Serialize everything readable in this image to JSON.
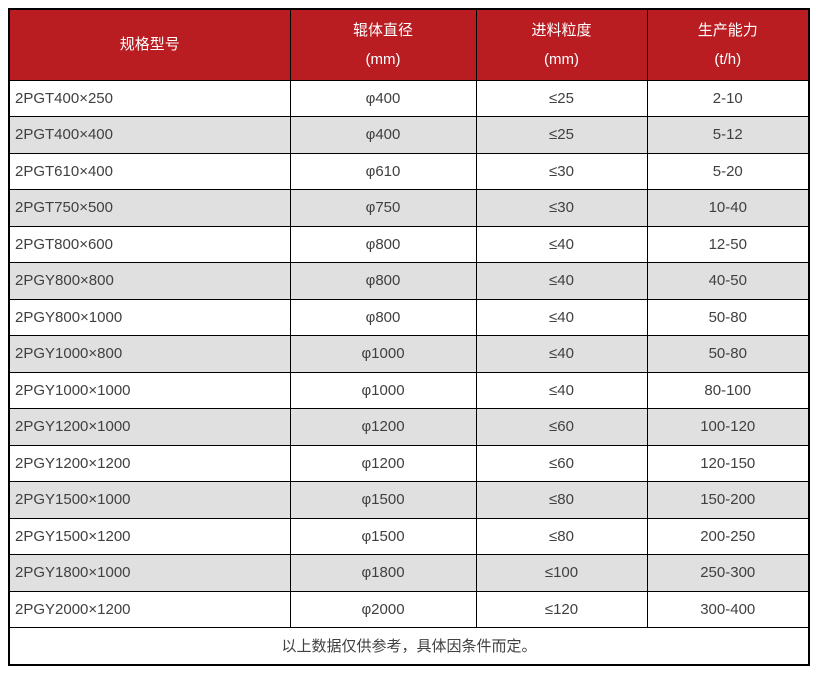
{
  "table": {
    "header": {
      "columns": [
        {
          "title": "规格型号",
          "unit": ""
        },
        {
          "title": "辊体直径",
          "unit": "(mm)"
        },
        {
          "title": "进料粒度",
          "unit": "(mm)"
        },
        {
          "title": "生产能力",
          "unit": "(t/h)"
        }
      ]
    },
    "rows": [
      [
        "2PGT400×250",
        "φ400",
        "≤25",
        "2-10"
      ],
      [
        "2PGT400×400",
        "φ400",
        "≤25",
        "5-12"
      ],
      [
        "2PGT610×400",
        "φ610",
        "≤30",
        "5-20"
      ],
      [
        "2PGT750×500",
        "φ750",
        "≤30",
        "10-40"
      ],
      [
        "2PGT800×600",
        "φ800",
        "≤40",
        "12-50"
      ],
      [
        "2PGY800×800",
        "φ800",
        "≤40",
        "40-50"
      ],
      [
        "2PGY800×1000",
        "φ800",
        "≤40",
        "50-80"
      ],
      [
        "2PGY1000×800",
        "φ1000",
        "≤40",
        "50-80"
      ],
      [
        "2PGY1000×1000",
        "φ1000",
        "≤40",
        "80-100"
      ],
      [
        "2PGY1200×1000",
        "φ1200",
        "≤60",
        "100-120"
      ],
      [
        "2PGY1200×1200",
        "φ1200",
        "≤60",
        "120-150"
      ],
      [
        "2PGY1500×1000",
        "φ1500",
        "≤80",
        "150-200"
      ],
      [
        "2PGY1500×1200",
        "φ1500",
        "≤80",
        "200-250"
      ],
      [
        "2PGY1800×1000",
        "φ1800",
        "≤100",
        "250-300"
      ],
      [
        "2PGY2000×1200",
        "φ2000",
        "≤120",
        "300-400"
      ]
    ],
    "footer_note": "以上数据仅供参考，具体因条件而定。"
  },
  "colors": {
    "header_bg": "#b91c21",
    "header_text": "#ffffff",
    "row_bg": "#ffffff",
    "row_alt_bg": "#e0e0e0",
    "body_text": "#404040",
    "border": "#000000"
  }
}
